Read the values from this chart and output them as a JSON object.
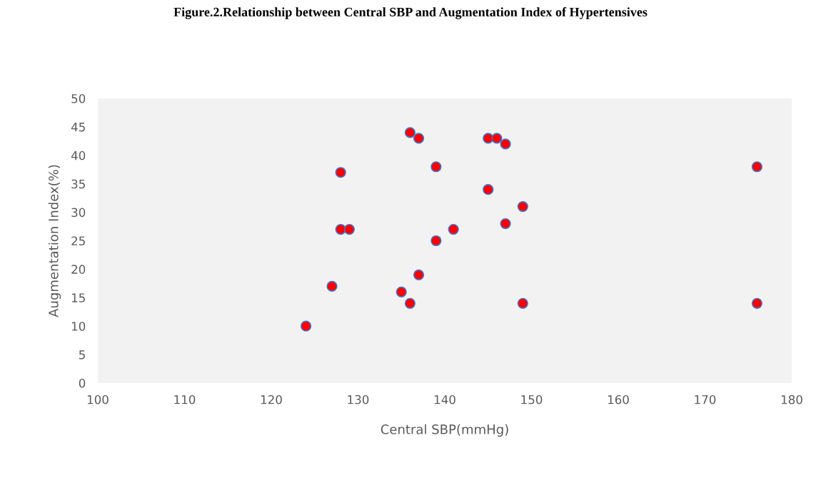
{
  "chart_data": {
    "type": "scatter",
    "title": "Figure.2.Relationship between Central SBP and Augmentation Index of Hypertensives",
    "xlabel": "Central SBP(mmHg)",
    "ylabel": "Augmentation Index(%)",
    "x": [
      124,
      127,
      128,
      128,
      129,
      135,
      136,
      136,
      137,
      137,
      139,
      139,
      141,
      145,
      145,
      146,
      147,
      147,
      149,
      149,
      176,
      176
    ],
    "series": [
      {
        "color": "#ff0000",
        "values": [
          10,
          17,
          37,
          27,
          27,
          16,
          14,
          44,
          43,
          19,
          38,
          25,
          27,
          43,
          34,
          43,
          42,
          28,
          31,
          14,
          38,
          14
        ]
      }
    ],
    "xlim": [
      100,
      180
    ],
    "xticks": [
      100,
      110,
      120,
      130,
      140,
      150,
      160,
      170,
      180
    ],
    "ylim": [
      0,
      50
    ],
    "yticks": [
      0,
      5,
      10,
      15,
      20,
      25,
      30,
      35,
      40,
      45,
      50
    ],
    "grid": false,
    "legend": false,
    "marker": "circle"
  }
}
